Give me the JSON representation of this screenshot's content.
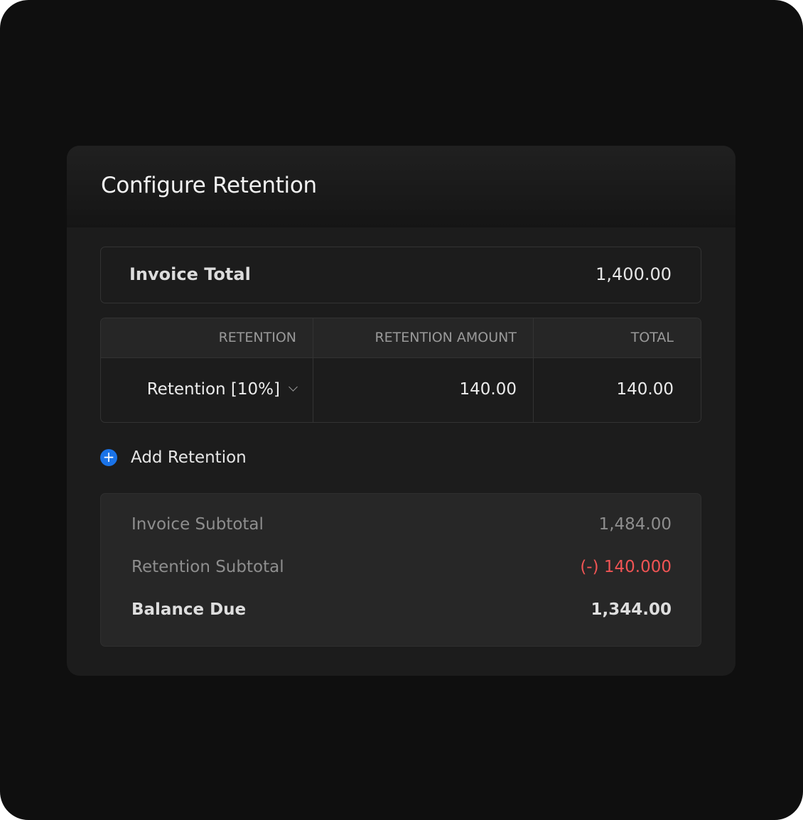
{
  "dialog": {
    "title": "Configure Retention"
  },
  "invoice_total": {
    "label": "Invoice Total",
    "value": "1,400.00"
  },
  "table": {
    "headers": [
      "RETENTION",
      "RETENTION AMOUNT",
      "TOTAL"
    ],
    "rows": [
      {
        "retention": "Retention [10%]",
        "amount": "140.00",
        "total": "140.00"
      }
    ]
  },
  "add_retention": {
    "label": "Add Retention",
    "icon": "plus-circle-icon",
    "icon_glyph": "+",
    "color": "#1a73e8"
  },
  "summary": {
    "invoice_subtotal": {
      "label": "Invoice Subtotal",
      "value": "1,484.00"
    },
    "retention_subtotal": {
      "label": "Retention Subtotal",
      "value": "(-) 140.000",
      "color": "#f05454"
    },
    "balance_due": {
      "label": "Balance Due",
      "value": "1,344.00"
    }
  }
}
